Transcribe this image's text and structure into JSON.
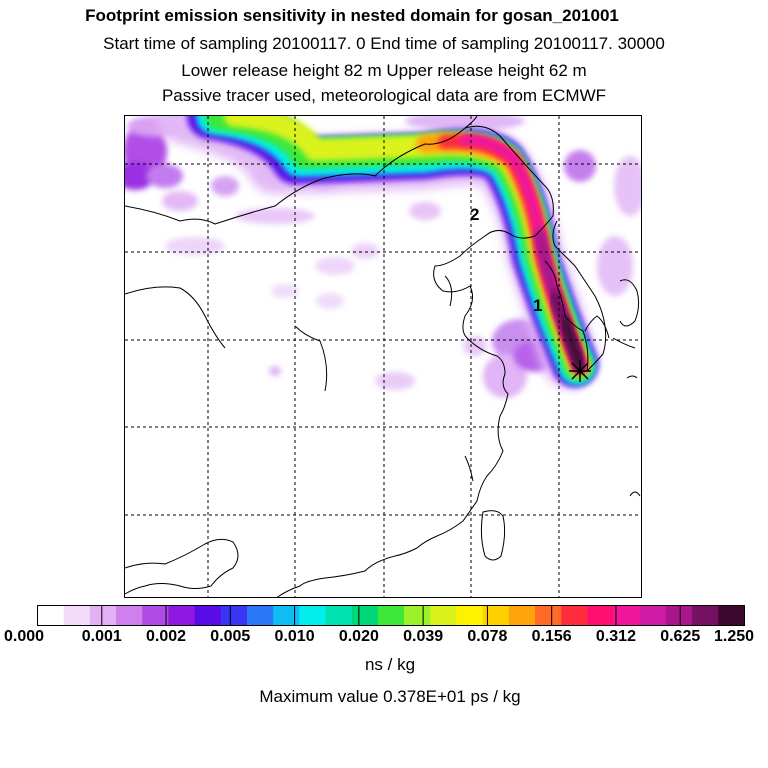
{
  "header": {
    "title": "Footprint emission sensitivity in nested domain for gosan_201001",
    "sampling_line": "Start time of sampling 20100117.     0     End time of sampling 20100117. 30000",
    "release_line": "Lower release height   82 m          Upper release height   62 m",
    "tracer_line": "Passive tracer used, meteorological data are from ECMWF"
  },
  "map": {
    "labels": [
      "1",
      "2"
    ],
    "receptor_marker": "receptor-star"
  },
  "colorbar": {
    "tick_labels": [
      "0.000",
      "0.001",
      "0.002",
      "0.005",
      "0.010",
      "0.020",
      "0.039",
      "0.078",
      "0.156",
      "0.312",
      "0.625",
      "1.250"
    ],
    "colors": [
      "#ffffff",
      "#f3dcfa",
      "#e3b0f5",
      "#cf7fee",
      "#b04be6",
      "#8f17e0",
      "#5a0ce8",
      "#3a35f2",
      "#2a78f7",
      "#0ebdf2",
      "#00eeee",
      "#00e0b0",
      "#00d878",
      "#3ee83a",
      "#9cf22a",
      "#dcf21c",
      "#fff200",
      "#ffd000",
      "#ffa20c",
      "#ff6a28",
      "#ff2c3e",
      "#ff1070",
      "#f0169a",
      "#cf1aa8",
      "#a8158c",
      "#761060",
      "#3c0830"
    ],
    "unit": "ns / kg",
    "max_label": "Maximum value  0.378E+01 ps / kg"
  }
}
